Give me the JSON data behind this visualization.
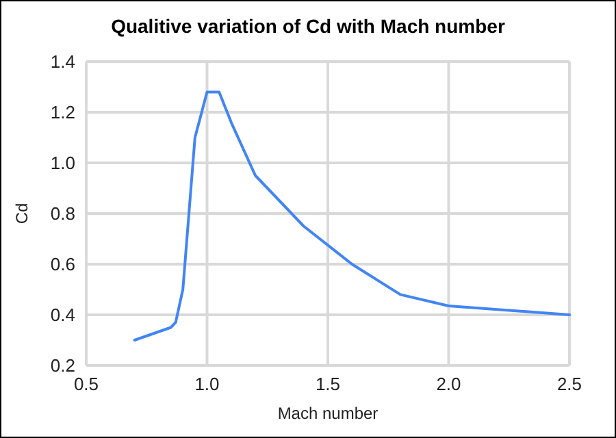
{
  "chart_data": {
    "type": "line",
    "title": "Qualitive variation of Cd with Mach number",
    "xlabel": "Mach number",
    "ylabel": "Cd",
    "x": [
      0.7,
      0.85,
      0.87,
      0.9,
      0.95,
      1.0,
      1.05,
      1.1,
      1.2,
      1.4,
      1.6,
      1.8,
      2.0,
      2.5
    ],
    "series": [
      {
        "color": "#4285f4",
        "values": [
          0.3,
          0.35,
          0.37,
          0.5,
          1.1,
          1.28,
          1.28,
          1.16,
          0.95,
          0.75,
          0.6,
          0.48,
          0.435,
          0.4
        ]
      }
    ],
    "xlim": [
      0.5,
      2.5
    ],
    "xticks": [
      {
        "value": 0.5,
        "label": "0.5"
      },
      {
        "value": 1,
        "label": "1.0"
      },
      {
        "value": 1.5,
        "label": "1.5"
      },
      {
        "value": 2,
        "label": "2.0"
      },
      {
        "value": 2.5,
        "label": "2.5"
      }
    ],
    "ylim": [
      0.2,
      1.4
    ],
    "yticks": [
      {
        "value": 0.2,
        "label": "0.2"
      },
      {
        "value": 0.4,
        "label": "0.4"
      },
      {
        "value": 0.6,
        "label": "0.6"
      },
      {
        "value": 0.8,
        "label": "0.8"
      },
      {
        "value": 1,
        "label": "1.0"
      },
      {
        "value": 1.2,
        "label": "1.2"
      },
      {
        "value": 1.4,
        "label": "1.4"
      }
    ],
    "grid": true,
    "marker": "none",
    "line_style": "solid"
  }
}
